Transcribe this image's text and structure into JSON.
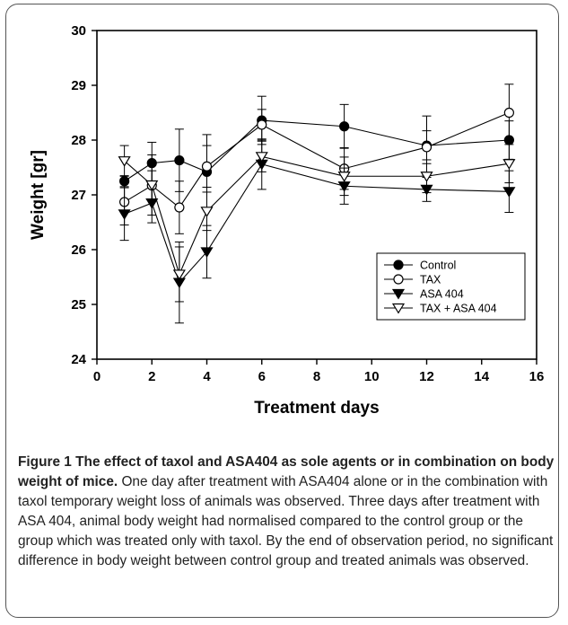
{
  "chart_data": {
    "type": "line",
    "xlabel": "Treatment days",
    "ylabel": "Weight [gr]",
    "xlim": [
      0,
      16
    ],
    "ylim": [
      24,
      30
    ],
    "xticks": [
      0,
      2,
      4,
      6,
      8,
      10,
      12,
      14,
      16
    ],
    "yticks": [
      24,
      25,
      26,
      27,
      28,
      29,
      30
    ],
    "x": [
      1,
      2,
      3,
      4,
      6,
      9,
      12,
      15
    ],
    "legend_position": "lower-right",
    "series": [
      {
        "name": "Control",
        "marker": "circle-filled",
        "values": [
          27.25,
          27.58,
          27.63,
          27.42,
          28.36,
          28.25,
          27.9,
          28.0
        ],
        "errors": [
          0.1,
          0.38,
          0.57,
          0.68,
          0.44,
          0.4,
          0.54,
          0.35
        ]
      },
      {
        "name": "TAX",
        "marker": "circle-open",
        "values": [
          26.87,
          27.17,
          26.77,
          27.52,
          28.28,
          27.48,
          27.87,
          28.5
        ],
        "errors": [
          0.42,
          0.27,
          0.48,
          0.38,
          0.28,
          0.38,
          0.3,
          0.52
        ]
      },
      {
        "name": "ASA 404",
        "marker": "triangle-down-filled",
        "values": [
          26.65,
          26.85,
          25.4,
          25.96,
          27.56,
          27.16,
          27.1,
          27.06
        ],
        "errors": [
          0.48,
          0.36,
          0.74,
          0.48,
          0.46,
          0.33,
          0.22,
          0.38
        ]
      },
      {
        "name": "TAX + ASA 404",
        "marker": "triangle-down-open",
        "values": [
          27.62,
          27.18,
          25.55,
          26.7,
          27.7,
          27.34,
          27.34,
          27.57
        ],
        "errors": [
          0.28,
          0.55,
          0.5,
          0.35,
          0.28,
          0.35,
          0.3,
          0.35
        ]
      }
    ]
  },
  "caption": {
    "title": "Figure 1 The effect of taxol and ASA404 as sole agents or in combination on body weight of mice.",
    "text": " One day after treatment with ASA404 alone or in the combination with taxol temporary weight loss of animals was observed. Three days after treatment with ASA 404, animal body weight had normalised compared to the control group or the group which was treated only with taxol. By the end of observation period, no significant difference in body weight between control group and treated animals was observed."
  }
}
